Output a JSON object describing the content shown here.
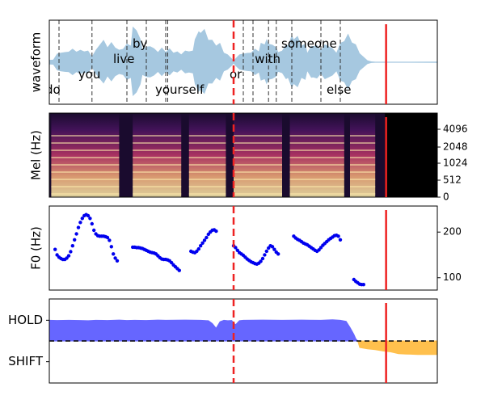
{
  "chart_data": [
    {
      "type": "area",
      "panel": "waveform",
      "ylabel": "waveform",
      "x_range": [
        0.0,
        1.0
      ],
      "words": [
        {
          "label": "do",
          "start": 0.025,
          "row": "bottom"
        },
        {
          "label": "you",
          "start": 0.11,
          "row": "lower"
        },
        {
          "label": "live",
          "start": 0.2,
          "row": "middle"
        },
        {
          "label": "by",
          "start": 0.25,
          "row": "upper"
        },
        {
          "label": "yourself",
          "start": 0.3,
          "row": "bottom"
        },
        {
          "label": "or",
          "start": 0.5,
          "row": "lower"
        },
        {
          "label": "with",
          "start": 0.565,
          "row": "middle"
        },
        {
          "label": "someone",
          "start": 0.625,
          "row": "upper"
        },
        {
          "label": "else",
          "start": 0.75,
          "row": "bottom"
        }
      ],
      "envelope": [
        [
          0.0,
          0.06
        ],
        [
          0.01,
          0.08
        ],
        [
          0.02,
          0.22
        ],
        [
          0.03,
          0.3
        ],
        [
          0.04,
          0.26
        ],
        [
          0.05,
          0.33
        ],
        [
          0.06,
          0.35
        ],
        [
          0.07,
          0.33
        ],
        [
          0.08,
          0.32
        ],
        [
          0.09,
          0.34
        ],
        [
          0.1,
          0.3
        ],
        [
          0.11,
          0.18
        ],
        [
          0.12,
          0.32
        ],
        [
          0.13,
          0.55
        ],
        [
          0.14,
          0.58
        ],
        [
          0.15,
          0.47
        ],
        [
          0.16,
          0.52
        ],
        [
          0.17,
          0.46
        ],
        [
          0.18,
          0.32
        ],
        [
          0.19,
          0.42
        ],
        [
          0.2,
          0.48
        ],
        [
          0.21,
          0.52
        ],
        [
          0.215,
          0.92
        ],
        [
          0.225,
          1.0
        ],
        [
          0.235,
          0.6
        ],
        [
          0.24,
          0.42
        ],
        [
          0.25,
          0.4
        ],
        [
          0.26,
          0.5
        ],
        [
          0.27,
          0.36
        ],
        [
          0.28,
          0.32
        ],
        [
          0.29,
          0.38
        ],
        [
          0.3,
          0.32
        ],
        [
          0.31,
          0.36
        ],
        [
          0.32,
          0.3
        ],
        [
          0.33,
          0.28
        ],
        [
          0.34,
          0.25
        ],
        [
          0.35,
          0.3
        ],
        [
          0.36,
          0.34
        ],
        [
          0.37,
          0.3
        ],
        [
          0.375,
          0.72
        ],
        [
          0.385,
          0.8
        ],
        [
          0.39,
          0.92
        ],
        [
          0.4,
          0.86
        ],
        [
          0.41,
          0.7
        ],
        [
          0.42,
          0.58
        ],
        [
          0.43,
          0.52
        ],
        [
          0.44,
          0.5
        ],
        [
          0.45,
          0.3
        ],
        [
          0.46,
          0.2
        ],
        [
          0.47,
          0.12
        ],
        [
          0.475,
          0.04
        ],
        [
          0.48,
          0.12
        ],
        [
          0.49,
          0.2
        ],
        [
          0.5,
          0.27
        ],
        [
          0.51,
          0.24
        ],
        [
          0.52,
          0.3
        ],
        [
          0.53,
          0.35
        ],
        [
          0.54,
          0.34
        ],
        [
          0.545,
          0.5
        ],
        [
          0.555,
          0.56
        ],
        [
          0.56,
          0.6
        ],
        [
          0.565,
          0.58
        ],
        [
          0.575,
          0.45
        ],
        [
          0.585,
          0.47
        ],
        [
          0.59,
          0.26
        ],
        [
          0.6,
          0.36
        ],
        [
          0.61,
          0.46
        ],
        [
          0.615,
          0.52
        ],
        [
          0.625,
          0.7
        ],
        [
          0.63,
          0.72
        ],
        [
          0.64,
          0.68
        ],
        [
          0.65,
          0.52
        ],
        [
          0.66,
          0.48
        ],
        [
          0.665,
          0.3
        ],
        [
          0.675,
          0.42
        ],
        [
          0.68,
          0.5
        ],
        [
          0.69,
          0.44
        ],
        [
          0.7,
          0.38
        ],
        [
          0.71,
          0.46
        ],
        [
          0.72,
          0.5
        ],
        [
          0.73,
          0.36
        ],
        [
          0.74,
          0.3
        ],
        [
          0.75,
          0.5
        ],
        [
          0.76,
          0.66
        ],
        [
          0.77,
          0.74
        ],
        [
          0.78,
          0.62
        ],
        [
          0.79,
          0.46
        ],
        [
          0.8,
          0.28
        ],
        [
          0.81,
          0.14
        ],
        [
          0.82,
          0.06
        ],
        [
          0.83,
          0.02
        ],
        [
          0.84,
          0.015
        ],
        [
          1.0,
          0.015
        ]
      ]
    },
    {
      "type": "heatmap",
      "panel": "mel-spectrogram",
      "ylabel": "Mel (Hz)",
      "y_ticks": [
        "0",
        "512",
        "1024",
        "2048",
        "4096"
      ],
      "signal_end": 0.865
    },
    {
      "type": "scatter",
      "panel": "pitch",
      "ylabel": "F0 (Hz)",
      "y_ticks": [
        100,
        200
      ],
      "ylim": [
        73,
        257
      ],
      "series": [
        {
          "points": [
            [
              0.015,
              162
            ],
            [
              0.02,
              150
            ],
            [
              0.025,
              145
            ],
            [
              0.03,
              142
            ],
            [
              0.035,
              140
            ],
            [
              0.04,
              140
            ],
            [
              0.045,
              143
            ],
            [
              0.05,
              148
            ],
            [
              0.055,
              157
            ],
            [
              0.06,
              170
            ],
            [
              0.065,
              183
            ],
            [
              0.07,
              196
            ],
            [
              0.075,
              210
            ],
            [
              0.08,
              221
            ],
            [
              0.085,
              230
            ],
            [
              0.09,
              236
            ],
            [
              0.095,
              238
            ],
            [
              0.1,
              236
            ],
            [
              0.105,
              230
            ],
            [
              0.11,
              218
            ],
            [
              0.115,
              204
            ],
            [
              0.12,
              196
            ],
            [
              0.125,
              192
            ],
            [
              0.13,
              191
            ],
            [
              0.135,
              191
            ],
            [
              0.14,
              191
            ],
            [
              0.145,
              190
            ],
            [
              0.15,
              188
            ],
            [
              0.155,
              182
            ],
            [
              0.16,
              168
            ],
            [
              0.165,
              152
            ],
            [
              0.17,
              143
            ],
            [
              0.175,
              137
            ]
          ]
        },
        {
          "points": [
            [
              0.215,
              167
            ],
            [
              0.22,
              167
            ],
            [
              0.225,
              166
            ],
            [
              0.23,
              166
            ],
            [
              0.235,
              165
            ],
            [
              0.24,
              164
            ],
            [
              0.245,
              162
            ],
            [
              0.25,
              160
            ],
            [
              0.255,
              158
            ],
            [
              0.26,
              156
            ],
            [
              0.265,
              155
            ],
            [
              0.27,
              154
            ],
            [
              0.275,
              152
            ],
            [
              0.28,
              148
            ],
            [
              0.285,
              144
            ],
            [
              0.29,
              141
            ],
            [
              0.295,
              140
            ],
            [
              0.3,
              140
            ],
            [
              0.305,
              139
            ],
            [
              0.31,
              137
            ],
            [
              0.315,
              133
            ],
            [
              0.32,
              128
            ],
            [
              0.325,
              124
            ],
            [
              0.33,
              120
            ],
            [
              0.335,
              116
            ]
          ]
        },
        {
          "points": [
            [
              0.365,
              158
            ],
            [
              0.37,
              156
            ],
            [
              0.375,
              155
            ],
            [
              0.38,
              158
            ],
            [
              0.385,
              163
            ],
            [
              0.39,
              170
            ],
            [
              0.395,
              176
            ],
            [
              0.4,
              182
            ],
            [
              0.405,
              188
            ],
            [
              0.41,
              195
            ],
            [
              0.415,
              200
            ],
            [
              0.42,
              204
            ],
            [
              0.425,
              205
            ],
            [
              0.43,
              202
            ]
          ]
        },
        {
          "points": [
            [
              0.475,
              170
            ],
            [
              0.48,
              166
            ],
            [
              0.485,
              160
            ],
            [
              0.49,
              155
            ],
            [
              0.495,
              152
            ],
            [
              0.5,
              149
            ],
            [
              0.505,
              145
            ],
            [
              0.51,
              141
            ],
            [
              0.515,
              138
            ],
            [
              0.52,
              135
            ],
            [
              0.525,
              133
            ],
            [
              0.53,
              131
            ],
            [
              0.535,
              130
            ],
            [
              0.54,
              132
            ],
            [
              0.545,
              136
            ],
            [
              0.55,
              142
            ],
            [
              0.555,
              150
            ],
            [
              0.56,
              158
            ],
            [
              0.565,
              165
            ],
            [
              0.57,
              170
            ],
            [
              0.575,
              168
            ],
            [
              0.58,
              162
            ],
            [
              0.585,
              156
            ],
            [
              0.59,
              152
            ]
          ]
        },
        {
          "points": [
            [
              0.63,
              191
            ],
            [
              0.635,
              187
            ],
            [
              0.64,
              184
            ],
            [
              0.645,
              182
            ],
            [
              0.65,
              179
            ],
            [
              0.655,
              176
            ],
            [
              0.66,
              174
            ],
            [
              0.665,
              172
            ],
            [
              0.67,
              169
            ],
            [
              0.675,
              166
            ],
            [
              0.68,
              163
            ],
            [
              0.685,
              160
            ],
            [
              0.69,
              158
            ],
            [
              0.695,
              161
            ],
            [
              0.7,
              166
            ],
            [
              0.705,
              171
            ],
            [
              0.71,
              175
            ],
            [
              0.715,
              179
            ],
            [
              0.72,
              183
            ],
            [
              0.725,
              186
            ],
            [
              0.73,
              189
            ],
            [
              0.735,
              192
            ],
            [
              0.74,
              193
            ],
            [
              0.745,
              191
            ],
            [
              0.75,
              183
            ]
          ]
        },
        {
          "points": [
            [
              0.785,
              96
            ],
            [
              0.79,
              92
            ],
            [
              0.795,
              89
            ],
            [
              0.8,
              86
            ],
            [
              0.805,
              85
            ],
            [
              0.81,
              85
            ]
          ]
        }
      ]
    },
    {
      "type": "area",
      "panel": "vap",
      "y_ticks": [
        "HOLD",
        "SHIFT"
      ],
      "threshold_label": "",
      "series": [
        {
          "name": "HOLD",
          "color": "#6666ff",
          "points": [
            [
              0,
              0.95
            ],
            [
              0.02,
              0.94
            ],
            [
              0.05,
              0.95
            ],
            [
              0.08,
              0.94
            ],
            [
              0.1,
              0.93
            ],
            [
              0.12,
              0.95
            ],
            [
              0.15,
              0.94
            ],
            [
              0.18,
              0.96
            ],
            [
              0.2,
              0.94
            ],
            [
              0.22,
              0.95
            ],
            [
              0.25,
              0.94
            ],
            [
              0.28,
              0.96
            ],
            [
              0.3,
              0.95
            ],
            [
              0.35,
              0.96
            ],
            [
              0.39,
              0.95
            ],
            [
              0.41,
              0.93
            ],
            [
              0.42,
              0.8
            ],
            [
              0.43,
              0.58
            ],
            [
              0.44,
              0.88
            ],
            [
              0.45,
              0.95
            ],
            [
              0.46,
              0.93
            ],
            [
              0.47,
              0.94
            ],
            [
              0.48,
              0.74
            ],
            [
              0.49,
              0.93
            ],
            [
              0.5,
              0.95
            ],
            [
              0.55,
              0.96
            ],
            [
              0.6,
              0.95
            ],
            [
              0.65,
              0.96
            ],
            [
              0.7,
              0.95
            ],
            [
              0.73,
              0.97
            ],
            [
              0.75,
              0.95
            ],
            [
              0.765,
              0.9
            ],
            [
              0.775,
              0.62
            ],
            [
              0.785,
              0.3
            ],
            [
              0.79,
              0.1
            ],
            [
              0.795,
              0.0
            ]
          ]
        },
        {
          "name": "SHIFT",
          "color": "#ffc04d",
          "points": [
            [
              0.795,
              0.0
            ],
            [
              0.8,
              -0.3
            ],
            [
              0.82,
              -0.36
            ],
            [
              0.84,
              -0.4
            ],
            [
              0.86,
              -0.46
            ],
            [
              0.88,
              -0.5
            ],
            [
              0.9,
              -0.58
            ],
            [
              0.92,
              -0.6
            ],
            [
              0.95,
              -0.62
            ],
            [
              1.0,
              -0.62
            ]
          ]
        }
      ],
      "ylim": [
        -1,
        1
      ]
    }
  ],
  "markers": {
    "dashed_red_x": 0.475,
    "solid_red_x": 0.868
  },
  "colors": {
    "waveform": "#a6c8e0",
    "pitch_dots": "#0000ee",
    "marker_red": "#ee2222",
    "hold_fill": "#6666ff",
    "shift_fill": "#ffc04d"
  }
}
